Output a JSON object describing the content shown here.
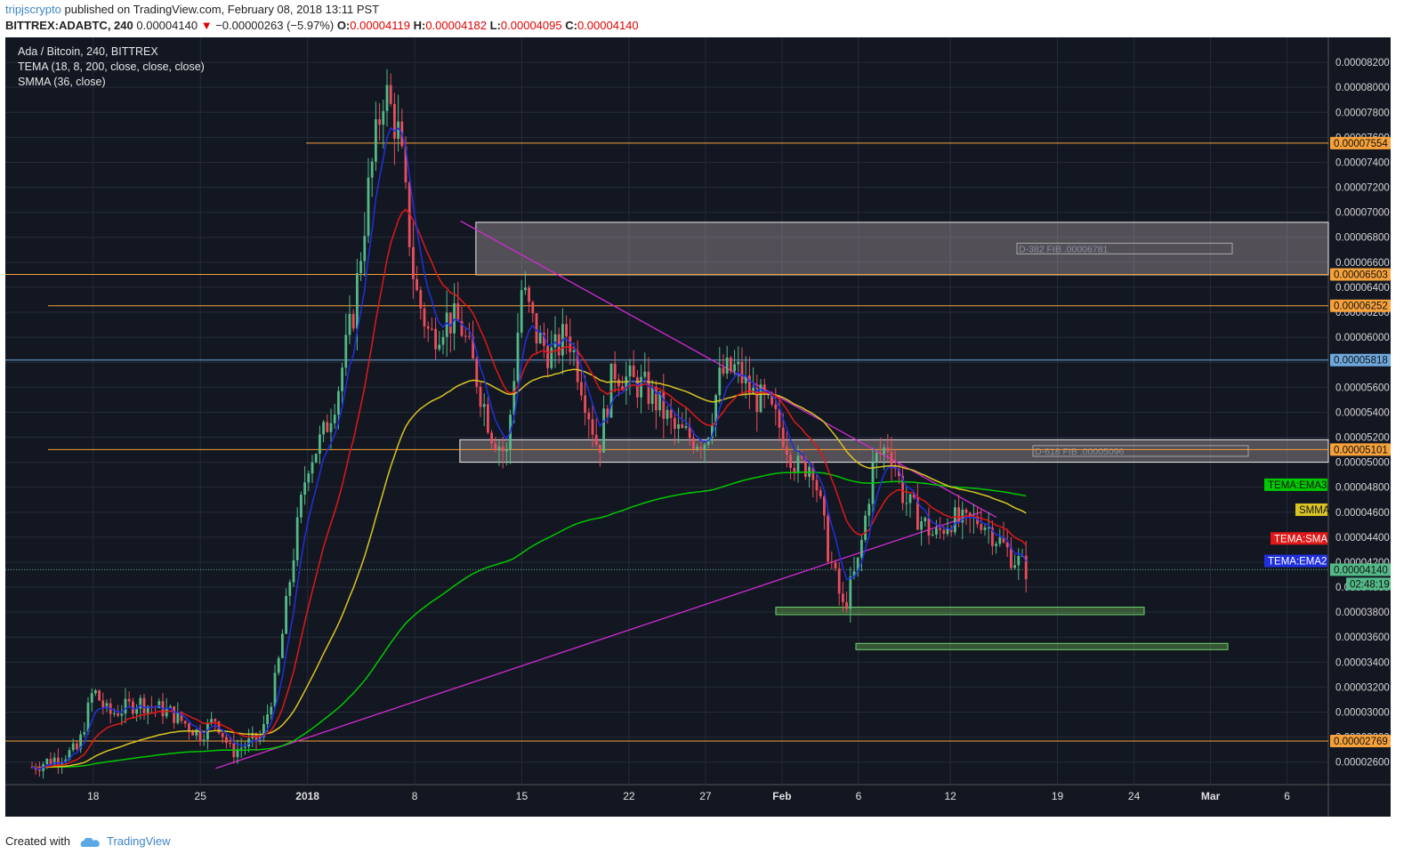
{
  "header": {
    "author": "tripjscrypto",
    "published": "published on TradingView.com, February 08, 2018 13:11 PST",
    "symbol": "BITTREX:ADABTC, 240",
    "last": "0.00004140",
    "change_arrow": "▼",
    "change": "−0.00000263 (−5.97%)",
    "o_label": "O:",
    "o": "0.00004119",
    "h_label": "H:",
    "h": "0.00004182",
    "l_label": "L:",
    "l": "0.00004095",
    "c_label": "C:",
    "c": "0.00004140"
  },
  "legend": {
    "title": "Ada / Bitcoin, 240, BITTREX",
    "tema": "TEMA (18, 8, 200, close, close, close)",
    "smma": "SMMA (36, close)"
  },
  "footer": {
    "created_with": "Created with",
    "brand": "TradingView"
  },
  "colors": {
    "background": "#131722",
    "up": "#53b987",
    "down": "#eb4d5c",
    "orange_level": "#f6a13a",
    "blue_level": "#6fa8dc",
    "tema_ema3": "#00c800",
    "smma": "#d9c522",
    "tema_sma": "#e01818",
    "tema_ema2": "#2030e0",
    "trendline": "#d42ad4"
  },
  "chart_data": {
    "type": "candlestick",
    "title": "Ada / Bitcoin, 240, BITTREX",
    "x_tick_labels": [
      "18",
      "25",
      "2018",
      "8",
      "15",
      "22",
      "27",
      "Feb",
      "6",
      "12",
      "19",
      "24",
      "Mar",
      "6"
    ],
    "y_tick_labels": [
      "0.00008200",
      "0.00008000",
      "0.00007800",
      "0.00007600",
      "0.00007400",
      "0.00007200",
      "0.00007000",
      "0.00006800",
      "0.00006600",
      "0.00006400",
      "0.00006200",
      "0.00006000",
      "0.00005800",
      "0.00005600",
      "0.00005400",
      "0.00005200",
      "0.00005000",
      "0.00004800",
      "0.00004600",
      "0.00004400",
      "0.00004200",
      "0.00004000",
      "0.00003800",
      "0.00003600",
      "0.00003400",
      "0.00003200",
      "0.00003000",
      "0.00002800",
      "0.00002600"
    ],
    "ylim": [
      2.42e-05,
      8.4e-05
    ],
    "price_series": [
      {
        "date": "2017-12-14",
        "price": 2.56e-05
      },
      {
        "date": "2017-12-17",
        "price": 2.7e-05
      },
      {
        "date": "2017-12-18",
        "price": 3.18e-05
      },
      {
        "date": "2017-12-19",
        "price": 2.98e-05
      },
      {
        "date": "2017-12-21",
        "price": 3.08e-05
      },
      {
        "date": "2017-12-23",
        "price": 3e-05
      },
      {
        "date": "2017-12-25",
        "price": 2.82e-05
      },
      {
        "date": "2017-12-26",
        "price": 2.95e-05
      },
      {
        "date": "2017-12-27",
        "price": 2.68e-05
      },
      {
        "date": "2017-12-29",
        "price": 2.8e-05
      },
      {
        "date": "2017-12-30",
        "price": 3.3e-05
      },
      {
        "date": "2017-12-31",
        "price": 4.2e-05
      },
      {
        "date": "2018-01-01",
        "price": 5e-05
      },
      {
        "date": "2018-01-02",
        "price": 5.2e-05
      },
      {
        "date": "2018-01-03",
        "price": 5.6e-05
      },
      {
        "date": "2018-01-04",
        "price": 6.2e-05
      },
      {
        "date": "2018-01-05",
        "price": 7.2e-05
      },
      {
        "date": "2018-01-06",
        "price": 8e-05
      },
      {
        "date": "2018-01-07",
        "price": 7.6e-05
      },
      {
        "date": "2018-01-08",
        "price": 6.4e-05
      },
      {
        "date": "2018-01-09",
        "price": 6e-05
      },
      {
        "date": "2018-01-10",
        "price": 6.15e-05
      },
      {
        "date": "2018-01-11",
        "price": 6.1e-05
      },
      {
        "date": "2018-01-12",
        "price": 5.7e-05
      },
      {
        "date": "2018-01-13",
        "price": 5.25e-05
      },
      {
        "date": "2018-01-14",
        "price": 5.05e-05
      },
      {
        "date": "2018-01-15",
        "price": 6.4e-05
      },
      {
        "date": "2018-01-16",
        "price": 6e-05
      },
      {
        "date": "2018-01-17",
        "price": 5.85e-05
      },
      {
        "date": "2018-01-18",
        "price": 6.05e-05
      },
      {
        "date": "2018-01-19",
        "price": 5.6e-05
      },
      {
        "date": "2018-01-20",
        "price": 5.1e-05
      },
      {
        "date": "2018-01-21",
        "price": 5.75e-05
      },
      {
        "date": "2018-01-22",
        "price": 5.65e-05
      },
      {
        "date": "2018-01-23",
        "price": 5.6e-05
      },
      {
        "date": "2018-01-24",
        "price": 5.45e-05
      },
      {
        "date": "2018-01-25",
        "price": 5.25e-05
      },
      {
        "date": "2018-01-26",
        "price": 5.2e-05
      },
      {
        "date": "2018-01-27",
        "price": 5.18e-05
      },
      {
        "date": "2018-01-28",
        "price": 5.7e-05
      },
      {
        "date": "2018-01-29",
        "price": 5.75e-05
      },
      {
        "date": "2018-01-30",
        "price": 5.55e-05
      },
      {
        "date": "2018-01-31",
        "price": 5.45e-05
      },
      {
        "date": "2018-02-01",
        "price": 5.25e-05
      },
      {
        "date": "2018-02-02",
        "price": 4.95e-05
      },
      {
        "date": "2018-02-03",
        "price": 5e-05
      },
      {
        "date": "2018-02-04",
        "price": 4.3e-05
      },
      {
        "date": "2018-02-05",
        "price": 3.82e-05
      },
      {
        "date": "2018-02-06",
        "price": 4.2e-05
      },
      {
        "date": "2018-02-07",
        "price": 5e-05
      },
      {
        "date": "2018-02-08",
        "price": 5.15e-05
      },
      {
        "date": "2018-02-09",
        "price": 4.7e-05
      },
      {
        "date": "2018-02-10",
        "price": 4.55e-05
      },
      {
        "date": "2018-02-11",
        "price": 4.4e-05
      },
      {
        "date": "2018-02-12",
        "price": 4.55e-05
      },
      {
        "date": "2018-02-13",
        "price": 4.5e-05
      },
      {
        "date": "2018-02-14",
        "price": 4.55e-05
      },
      {
        "date": "2018-02-15",
        "price": 4.4e-05
      },
      {
        "date": "2018-02-16",
        "price": 4.25e-05
      },
      {
        "date": "2018-02-17",
        "price": 4.14e-05
      }
    ],
    "indicators": [
      {
        "name": "TEMA:EMA3",
        "price": 4.82e-05
      },
      {
        "name": "SMMA",
        "price": 4.62e-05
      },
      {
        "name": "TEMA:SMA",
        "price": 4.39e-05
      },
      {
        "name": "TEMA:EMA2",
        "price": 4.21e-05
      }
    ],
    "price_levels": [
      {
        "label": "0.00007554",
        "price": 7.554e-05,
        "color": "orange"
      },
      {
        "label": "0.00006503",
        "price": 6.503e-05,
        "color": "orange"
      },
      {
        "label": "0.00006252",
        "price": 6.252e-05,
        "color": "orange"
      },
      {
        "label": "0.00005818",
        "price": 5.818e-05,
        "color": "blue"
      },
      {
        "label": "0.00005101",
        "price": 5.101e-05,
        "color": "orange"
      },
      {
        "label": "0.00002769",
        "price": 2.769e-05,
        "color": "orange"
      }
    ],
    "current_price": {
      "label": "0.00004140",
      "countdown": "02:48:19",
      "price": 4.14e-05
    },
    "zones": [
      {
        "type": "resistance",
        "top": 6.92e-05,
        "bottom": 6.5e-05,
        "label": "D-382 FIB .00006781"
      },
      {
        "type": "resistance",
        "top": 5.18e-05,
        "bottom": 5e-05,
        "label": "D-618 FIB .00005096"
      },
      {
        "type": "support",
        "top": 3.84e-05,
        "bottom": 3.78e-05
      },
      {
        "type": "support",
        "top": 3.55e-05,
        "bottom": 3.5e-05
      }
    ],
    "grid": true
  }
}
